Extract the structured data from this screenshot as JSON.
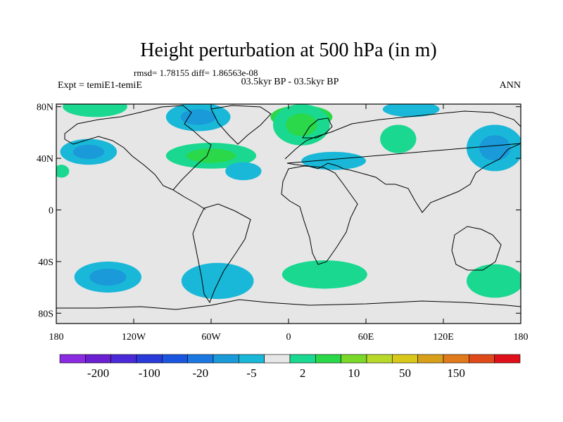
{
  "title": "Height perturbation at 500 hPa (in m)",
  "stats": "rmsd= 1.78155 diff= 1.86563e-08",
  "left_label": "Expt = temiE1-temiE",
  "center_label": "03.5kyr BP - 03.5kyr BP",
  "right_label": "ANN",
  "lat_ticks": [
    {
      "value": 80,
      "label": "80N"
    },
    {
      "value": 40,
      "label": "40N"
    },
    {
      "value": 0,
      "label": "0"
    },
    {
      "value": -40,
      "label": "40S"
    },
    {
      "value": -80,
      "label": "80S"
    }
  ],
  "lon_ticks": [
    {
      "value": -180,
      "label": "180"
    },
    {
      "value": -120,
      "label": "120W"
    },
    {
      "value": -60,
      "label": "60W"
    },
    {
      "value": 0,
      "label": "0"
    },
    {
      "value": 60,
      "label": "60E"
    },
    {
      "value": 120,
      "label": "120E"
    },
    {
      "value": 180,
      "label": "180"
    }
  ],
  "colorbar": {
    "colors": [
      "#8a2be2",
      "#6a1fd0",
      "#4a2ad8",
      "#2a3ad8",
      "#1a55e0",
      "#1a78e0",
      "#1a9ad8",
      "#1ab8d8",
      "#e6e6e6",
      "#1ad890",
      "#2ad84a",
      "#7ad82a",
      "#b8d82a",
      "#d8c81a",
      "#d8a01a",
      "#e07a1a",
      "#e04a1a",
      "#e0101a"
    ],
    "labels": [
      "-200",
      "-100",
      "-20",
      "-5",
      "2",
      "10",
      "50",
      "150"
    ]
  },
  "colors": {
    "ocean": "#e6e6e6",
    "pos_light": "#1ad890",
    "pos_mid": "#2ad84a",
    "neg_light": "#1ab8d8",
    "neg_mid": "#1a9ad8"
  },
  "chart_data": {
    "type": "heatmap",
    "projection": "cylindrical-equidistant",
    "lon_range": [
      -180,
      180
    ],
    "lat_range": [
      -90,
      90
    ],
    "units": "m",
    "levels": [
      -200,
      -100,
      -50,
      -20,
      -10,
      -5,
      -2,
      2,
      5,
      10,
      20,
      50,
      100,
      150
    ],
    "anomalies": [
      {
        "name": "siberia-highpos",
        "lon": 10,
        "lat": 72,
        "rx": 24,
        "ry": 9,
        "levels": [
          "#2ad84a"
        ]
      },
      {
        "name": "north-atlantic-ridge",
        "lon": -60,
        "lat": 42,
        "rx": 35,
        "ry": 10,
        "levels": [
          "#1ad890",
          "#2ad84a"
        ]
      },
      {
        "name": "north-pacific-pos-west",
        "lon": -150,
        "lat": 80,
        "rx": 25,
        "ry": 8,
        "levels": [
          "#1ad890"
        ]
      },
      {
        "name": "greenland-trough",
        "lon": -70,
        "lat": 72,
        "rx": 25,
        "ry": 11,
        "levels": [
          "#1ab8d8",
          "#1a9ad8"
        ]
      },
      {
        "name": "gulf-of-alaska-trough",
        "lon": -155,
        "lat": 45,
        "rx": 22,
        "ry": 10,
        "levels": [
          "#1ab8d8",
          "#1a9ad8"
        ]
      },
      {
        "name": "mid-atlantic-trough",
        "lon": -35,
        "lat": 30,
        "rx": 14,
        "ry": 7,
        "levels": [
          "#1ab8d8"
        ]
      },
      {
        "name": "europe-ridge",
        "lon": 10,
        "lat": 66,
        "rx": 22,
        "ry": 16,
        "levels": [
          "#1ad890",
          "#2ad84a"
        ]
      },
      {
        "name": "east-europe-trough",
        "lon": 35,
        "lat": 38,
        "rx": 25,
        "ry": 7,
        "levels": [
          "#1ab8d8"
        ]
      },
      {
        "name": "siberia-arctic-trough",
        "lon": 95,
        "lat": 78,
        "rx": 22,
        "ry": 6,
        "levels": [
          "#1ab8d8"
        ]
      },
      {
        "name": "central-asia-ridge",
        "lon": 85,
        "lat": 55,
        "rx": 14,
        "ry": 11,
        "levels": [
          "#1ad890"
        ]
      },
      {
        "name": "east-asia-trough",
        "lon": 160,
        "lat": 48,
        "rx": 22,
        "ry": 18,
        "levels": [
          "#1ab8d8",
          "#1a9ad8"
        ]
      },
      {
        "name": "north-pacific-edge-pos",
        "lon": -176,
        "lat": 30,
        "rx": 6,
        "ry": 5,
        "levels": [
          "#1ad890"
        ]
      },
      {
        "name": "south-pacific-trough",
        "lon": -140,
        "lat": -52,
        "rx": 26,
        "ry": 12,
        "levels": [
          "#1ab8d8",
          "#1a9ad8"
        ]
      },
      {
        "name": "south-atlantic-trough",
        "lon": -55,
        "lat": -55,
        "rx": 28,
        "ry": 14,
        "levels": [
          "#1ab8d8"
        ]
      },
      {
        "name": "south-africa-ridge",
        "lon": 28,
        "lat": -50,
        "rx": 33,
        "ry": 11,
        "levels": [
          "#1ad890"
        ]
      },
      {
        "name": "south-indian-ridge",
        "lon": 160,
        "lat": -55,
        "rx": 22,
        "ry": 13,
        "levels": [
          "#1ad890"
        ]
      }
    ]
  }
}
